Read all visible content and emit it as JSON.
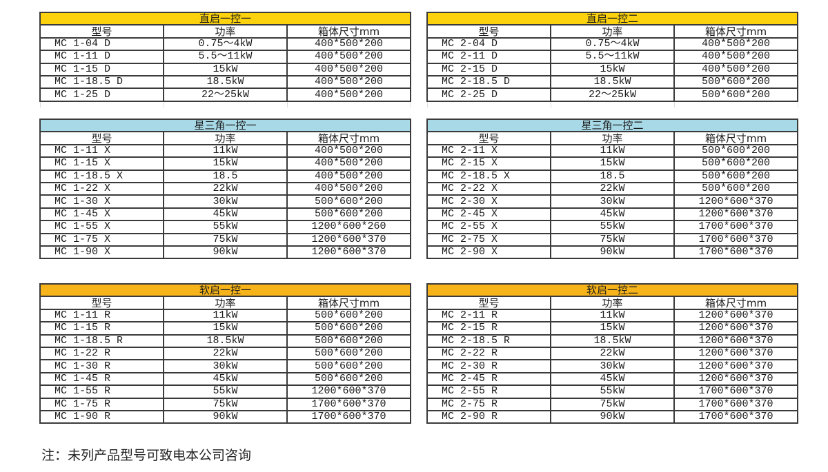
{
  "colors": {
    "direct": "#FCD20F",
    "star": "#A8D9E6",
    "soft": "#F6B41A",
    "border": "#3a3a3a"
  },
  "columns": [
    "型号",
    "功率",
    "箱体尺寸mm"
  ],
  "tables": [
    {
      "title": "直启一控一",
      "color": "direct",
      "rows": [
        [
          "MC 1-04 D",
          "0.75～4kW",
          "400*500*200"
        ],
        [
          "MC 1-11 D",
          "5.5～11kW",
          "400*500*200"
        ],
        [
          "MC 1-15 D",
          "15kW",
          "400*500*200"
        ],
        [
          "MC 1-18.5 D",
          "18.5kW",
          "400*500*200"
        ],
        [
          "MC 1-25 D",
          "22～25kW",
          "400*500*200"
        ]
      ]
    },
    {
      "title": "直启一控二",
      "color": "direct",
      "rows": [
        [
          "MC 2-04 D",
          "0.75～4kW",
          "400*500*200"
        ],
        [
          "MC 2-11 D",
          "5.5～11kW",
          "400*500*200"
        ],
        [
          "MC 2-15 D",
          "15kW",
          "400*500*200"
        ],
        [
          "MC 2-18.5 D",
          "18.5kW",
          "500*600*200"
        ],
        [
          "MC 2-25 D",
          "22～25kW",
          "500*600*200"
        ]
      ]
    },
    {
      "title": "星三角一控一",
      "color": "star",
      "rows": [
        [
          "MC 1-11 X",
          "11kW",
          "400*500*200"
        ],
        [
          "MC 1-15 X",
          "15kW",
          "400*500*200"
        ],
        [
          "MC 1-18.5 X",
          "18.5",
          "400*500*200"
        ],
        [
          "MC 1-22 X",
          "22kW",
          "400*500*200"
        ],
        [
          "MC 1-30 X",
          "30kW",
          "500*600*200"
        ],
        [
          "MC 1-45 X",
          "45kW",
          "500*600*200"
        ],
        [
          "MC 1-55 X",
          "55kW",
          "1200*600*260"
        ],
        [
          "MC 1-75 X",
          "75kW",
          "1200*600*370"
        ],
        [
          "MC 1-90 X",
          "90kW",
          "1200*600*370"
        ]
      ]
    },
    {
      "title": "星三角一控二",
      "color": "star",
      "rows": [
        [
          "MC 2-11 X",
          "11kW",
          "500*600*200"
        ],
        [
          "MC 2-15 X",
          "15kW",
          "500*600*200"
        ],
        [
          "MC 2-18.5 X",
          "18.5",
          "500*600*200"
        ],
        [
          "MC 2-22 X",
          "22kW",
          "500*600*200"
        ],
        [
          "MC 2-30 X",
          "30kW",
          "1200*600*370"
        ],
        [
          "MC 2-45 X",
          "45kW",
          "1200*600*370"
        ],
        [
          "MC 2-55 X",
          "55kW",
          "1700*600*370"
        ],
        [
          "MC 2-75 X",
          "75kW",
          "1700*600*370"
        ],
        [
          "MC 2-90 X",
          "90kW",
          "1700*600*370"
        ]
      ]
    },
    {
      "title": "软启一控一",
      "color": "soft",
      "rows": [
        [
          "MC 1-11 R",
          "11kW",
          "500*600*200"
        ],
        [
          "MC 1-15 R",
          "15kW",
          "500*600*200"
        ],
        [
          "MC 1-18.5 R",
          "18.5kW",
          "500*600*200"
        ],
        [
          "MC 1-22 R",
          "22kW",
          "500*600*200"
        ],
        [
          "MC 1-30 R",
          "30kW",
          "500*600*200"
        ],
        [
          "MC 1-45 R",
          "45kW",
          "500*600*200"
        ],
        [
          "MC 1-55 R",
          "55kW",
          "1200*600*370"
        ],
        [
          "MC 1-75 R",
          "75kW",
          "1700*600*370"
        ],
        [
          "MC 1-90 R",
          "90kW",
          "1700*600*370"
        ]
      ]
    },
    {
      "title": "软启一控二",
      "color": "soft",
      "rows": [
        [
          "MC 2-11 R",
          "11kW",
          "1200*600*370"
        ],
        [
          "MC 2-15 R",
          "15kW",
          "1200*600*370"
        ],
        [
          "MC 2-18.5 R",
          "18.5kW",
          "1200*600*370"
        ],
        [
          "MC 2-22 R",
          "22kW",
          "1200*600*370"
        ],
        [
          "MC 2-30 R",
          "30kW",
          "1200*600*370"
        ],
        [
          "MC 2-45 R",
          "45kW",
          "1200*600*370"
        ],
        [
          "MC 2-55 R",
          "55kW",
          "1700*600*370"
        ],
        [
          "MC 2-75 R",
          "75kW",
          "1700*600*370"
        ],
        [
          "MC 2-90 R",
          "90kW",
          "1700*600*370"
        ]
      ]
    }
  ],
  "note": "注：未列产品型号可致电本公司咨询"
}
